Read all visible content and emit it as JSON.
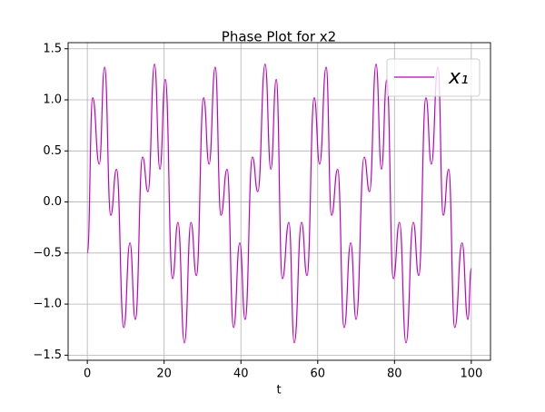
{
  "chart_data": {
    "type": "line",
    "title": "Phase Plot for x2",
    "x_label": "t",
    "series": [
      {
        "name": "x₁",
        "color": "#bf00bf",
        "x": [
          0,
          1.4,
          3.1,
          4.5,
          6.1,
          7.6,
          9.5,
          11.1,
          12.5,
          14.4,
          15.8,
          17.5,
          18.9,
          20.3,
          22.2,
          23.6,
          25.3,
          27.0,
          28.4,
          30.3,
          31.7,
          33.3,
          34.8,
          36.4,
          38.1,
          39.7,
          41.1,
          43.0,
          44.4,
          46.3,
          47.8,
          49.2,
          50.8,
          52.5,
          53.9,
          55.8,
          57.2,
          59.1,
          60.5,
          62.2,
          63.6,
          65.2,
          66.9,
          68.6,
          70.0,
          72.1,
          73.5,
          75.2,
          76.6,
          78.0,
          79.7,
          81.3,
          83.0,
          84.9,
          86.3,
          88.2,
          89.6,
          91.3,
          92.7,
          94.1,
          95.7,
          97.6,
          99.1,
          100
        ],
        "values": [
          -0.5,
          1.02,
          0.37,
          1.32,
          -0.13,
          0.32,
          -1.23,
          -0.4,
          -1.15,
          0.44,
          0.1,
          1.35,
          0.32,
          1.2,
          -0.75,
          -0.2,
          -1.38,
          -0.2,
          -0.72,
          1.02,
          0.37,
          1.32,
          -0.13,
          0.32,
          -1.23,
          -0.4,
          -1.15,
          0.44,
          0.1,
          1.35,
          0.32,
          1.2,
          -0.75,
          -0.2,
          -1.38,
          -0.2,
          -0.72,
          1.02,
          0.37,
          1.32,
          -0.13,
          0.32,
          -1.23,
          -0.4,
          -1.15,
          0.44,
          0.1,
          1.35,
          0.32,
          1.2,
          -0.75,
          -0.2,
          -1.38,
          -0.2,
          -0.72,
          1.02,
          0.37,
          1.32,
          -0.13,
          0.32,
          -1.23,
          -0.4,
          -1.15,
          -0.65
        ]
      }
    ],
    "xlim": [
      -5,
      105
    ],
    "ylim": [
      -1.55,
      1.56
    ],
    "xticks": [
      0,
      20,
      40,
      60,
      80,
      100
    ],
    "yticks": [
      {
        "value": -1.5,
        "label": "−1.5"
      },
      {
        "value": -1.0,
        "label": "−1.0"
      },
      {
        "value": -0.5,
        "label": "−0.5"
      },
      {
        "value": 0,
        "label": "0.0"
      },
      0.5,
      {
        "value": 1.0,
        "label": "1.0"
      },
      1.5
    ],
    "grid": true,
    "legend": "upper right"
  }
}
